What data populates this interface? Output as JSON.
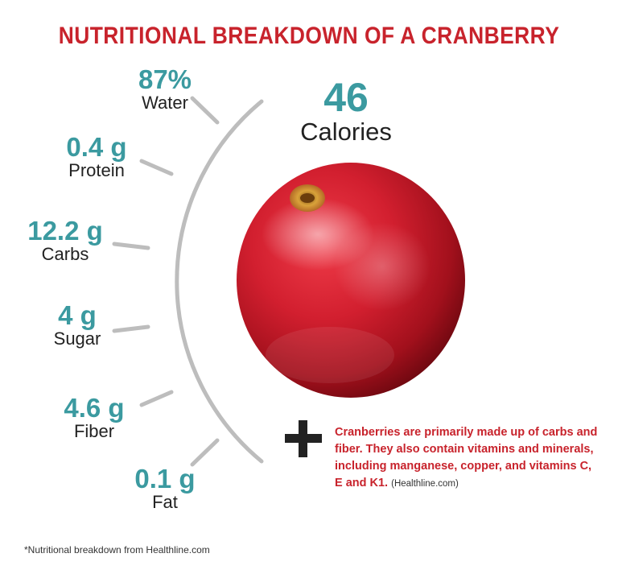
{
  "title": "NUTRITIONAL BREAKDOWN OF A CRANBERRY",
  "calories": {
    "value": "46",
    "label": "Calories"
  },
  "nutrients": [
    {
      "value": "87%",
      "label": "Water"
    },
    {
      "value": "0.4 g",
      "label": "Protein"
    },
    {
      "value": "12.2 g",
      "label": "Carbs"
    },
    {
      "value": "4 g",
      "label": "Sugar"
    },
    {
      "value": "4.6 g",
      "label": "Fiber"
    },
    {
      "value": "0.1 g",
      "label": "Fat"
    }
  ],
  "fact": {
    "text": "Cranberries are primarily made up of carbs and fiber. They also contain vitamins and minerals, including manganese, copper, and vitamins C, E and K1.",
    "source": "(Healthline.com)"
  },
  "footnote": "*Nutritional breakdown from Healthline.com",
  "colors": {
    "title": "#c8232c",
    "value": "#3b9aa0",
    "arc": "#bdbdbd",
    "fact": "#c8232c"
  },
  "icons": {
    "plus": "plus-icon",
    "berry": "cranberry-image"
  }
}
